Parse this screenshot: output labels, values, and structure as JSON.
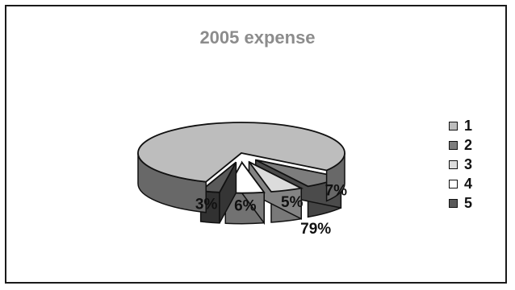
{
  "chart_data": {
    "type": "pie",
    "title": "2005 expense",
    "categories": [
      "1",
      "2",
      "3",
      "4",
      "5"
    ],
    "values": [
      79,
      7,
      5,
      6,
      3
    ],
    "labels": [
      "79%",
      "7%",
      "5%",
      "6%",
      "3%"
    ],
    "exploded": [
      false,
      true,
      true,
      true,
      true
    ],
    "three_d": true,
    "legend_position": "right",
    "colors": [
      "#bdbdbd",
      "#7d7d7d",
      "#dcdcdc",
      "#ffffff",
      "#595959"
    ]
  }
}
